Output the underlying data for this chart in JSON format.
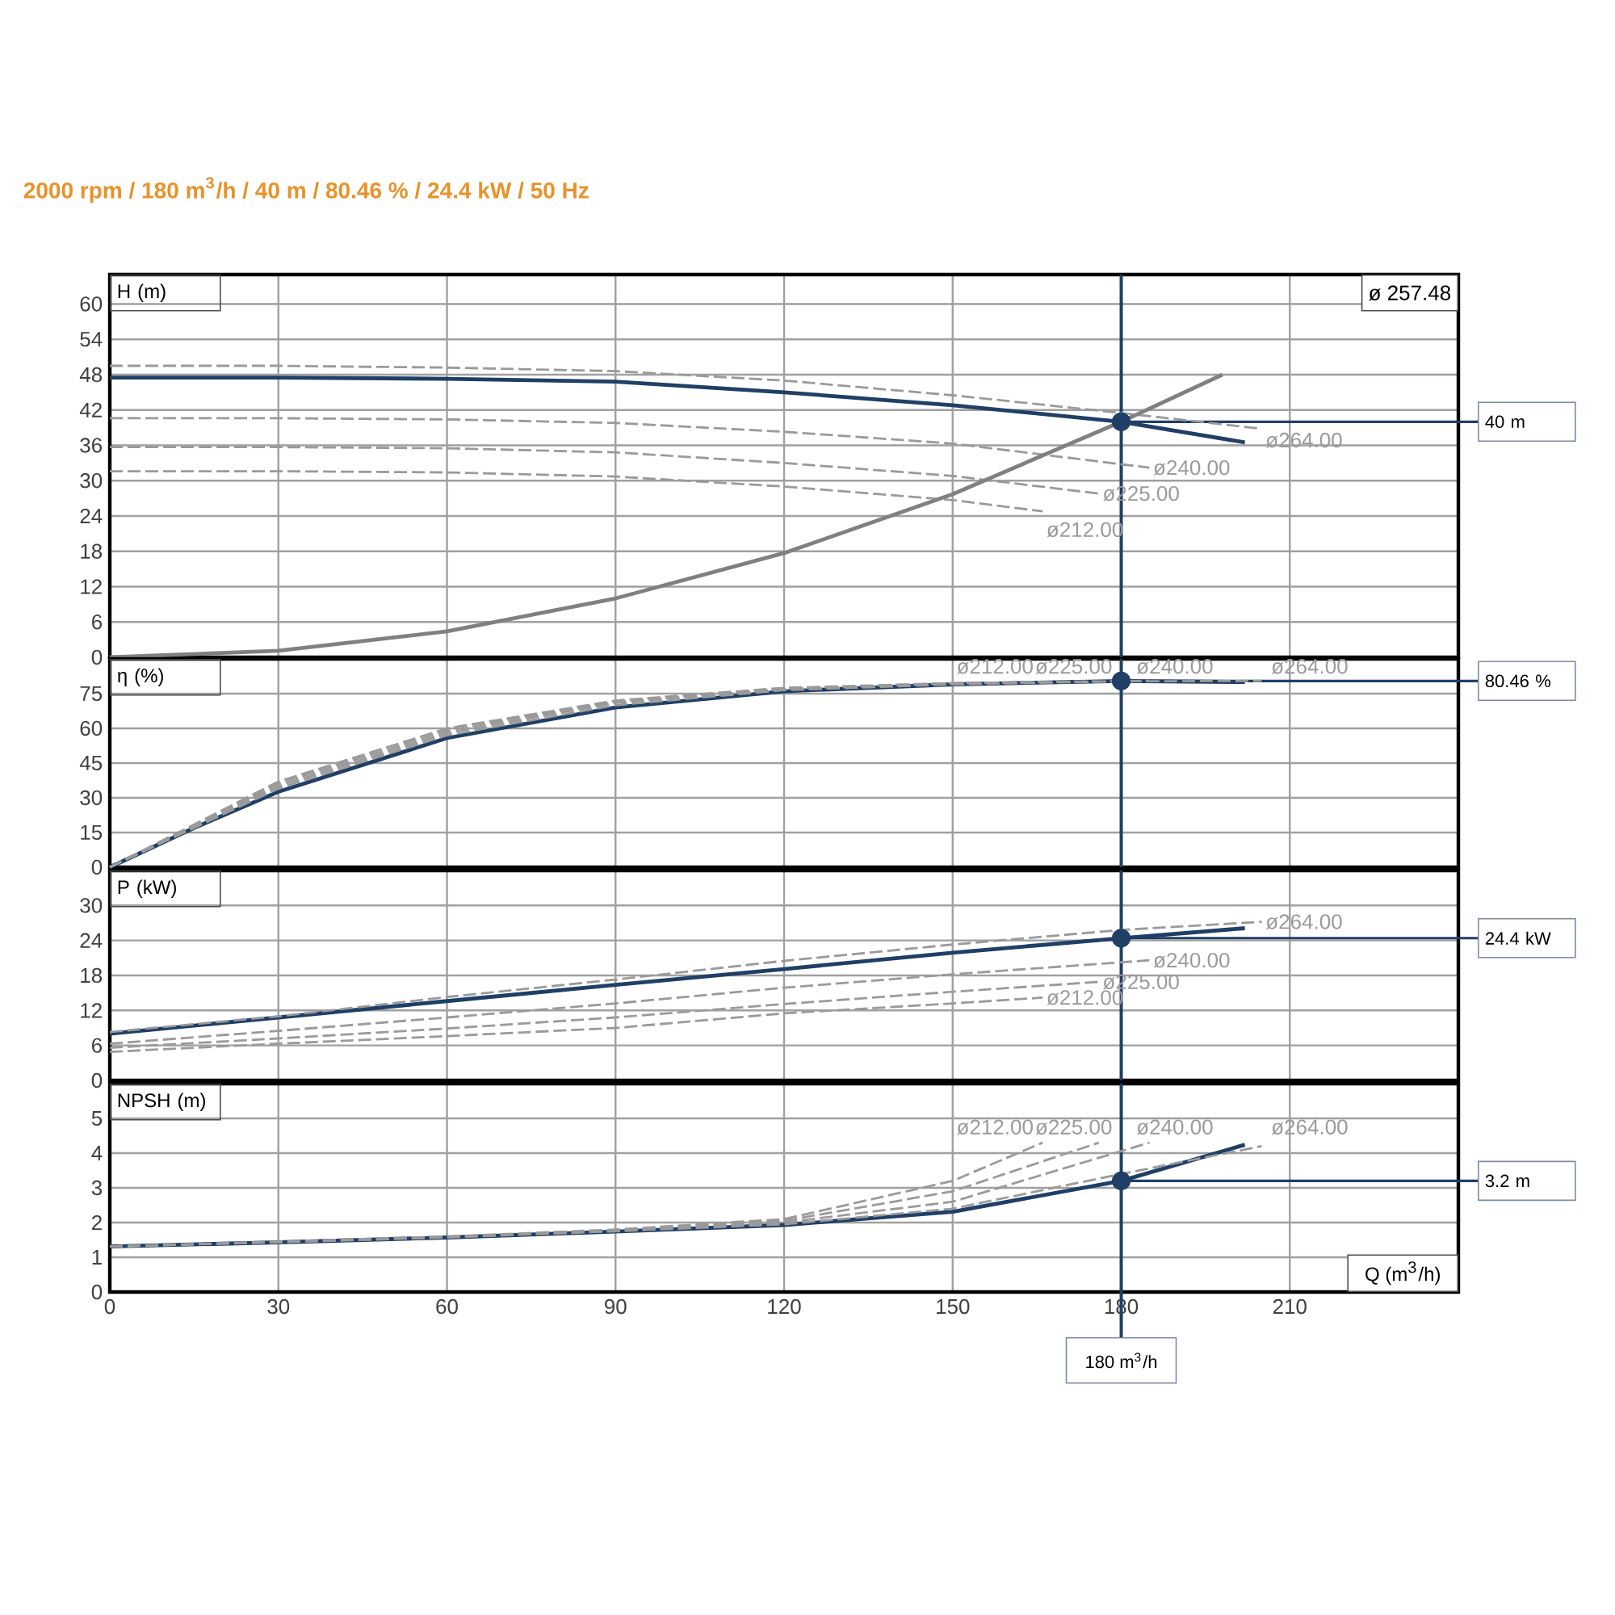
{
  "chart_data": [
    {
      "type": "line",
      "title": "2000 rpm / 180 m$^{3}$/h / 40 m / 80.46 % / 24.4 kW / 50 Hz",
      "ylabel": "H (m)",
      "annotations": [
        "ø 257.48"
      ],
      "xlim": [
        0,
        240
      ],
      "xticks": [
        0,
        30,
        60,
        90,
        120,
        150,
        180,
        210
      ],
      "ylim": [
        0,
        65
      ],
      "yticks": [
        0,
        6,
        12,
        18,
        24,
        30,
        36,
        42,
        48,
        54,
        60
      ],
      "grid": true,
      "tick_labels": "y",
      "series": [
        {
          "color": "#1f3f66",
          "x": [
            0,
            30,
            60,
            90,
            120,
            150,
            180,
            202
          ],
          "values": [
            47.5,
            47.5,
            47.3,
            46.8,
            45,
            42.8,
            40,
            36.5
          ]
        },
        {
          "name": "ø264.00",
          "color": "#9a9a9a",
          "line_style": "dashed",
          "x": [
            0,
            30,
            60,
            90,
            120,
            150,
            180,
            205
          ],
          "values": [
            49.5,
            49.5,
            49.2,
            48.6,
            47,
            44.5,
            41.5,
            38.8
          ]
        },
        {
          "name": "ø240.00",
          "color": "#9a9a9a",
          "line_style": "dashed",
          "x": [
            0,
            30,
            60,
            90,
            120,
            150,
            185
          ],
          "values": [
            40.6,
            40.6,
            40.4,
            39.8,
            38.3,
            36.3,
            32.2
          ]
        },
        {
          "name": "ø225.00",
          "color": "#9a9a9a",
          "line_style": "dashed",
          "x": [
            0,
            30,
            60,
            90,
            120,
            150,
            176
          ],
          "values": [
            35.7,
            35.7,
            35.5,
            34.8,
            33,
            30.8,
            27.8
          ]
        },
        {
          "name": "ø212.00",
          "color": "#9a9a9a",
          "line_style": "dashed",
          "x": [
            0,
            30,
            60,
            90,
            120,
            150,
            166
          ],
          "values": [
            31.6,
            31.6,
            31.4,
            30.7,
            29,
            26.7,
            24.8
          ]
        },
        {
          "color": "#808080",
          "x": [
            0,
            30,
            60,
            90,
            120,
            150,
            180,
            198
          ],
          "values": [
            0,
            1.1,
            4.4,
            10,
            17.7,
            27.7,
            40,
            48
          ]
        },
        {
          "type": "scatter",
          "marker": "circle",
          "color": "#1f3f66",
          "x": [
            180
          ],
          "values": [
            40
          ]
        }
      ],
      "ref_lines": [
        {
          "axis": "x",
          "value": 180,
          "color": "#1f3f66"
        },
        {
          "axis": "y",
          "value": 40,
          "label": "40 m",
          "color": "#1f3f66"
        }
      ]
    },
    {
      "type": "line",
      "ylabel": "η (%)",
      "xlim": [
        0,
        240
      ],
      "xticks": [
        0,
        30,
        60,
        90,
        120,
        150,
        180,
        210
      ],
      "ylim": [
        0,
        90
      ],
      "yticks": [
        0,
        15,
        30,
        45,
        60,
        75
      ],
      "grid": true,
      "tick_labels": "y",
      "series": [
        {
          "color": "#1f3f66",
          "x": [
            0,
            15,
            30,
            60,
            90,
            120,
            150,
            180,
            202
          ],
          "values": [
            0,
            17,
            32.6,
            55.8,
            69,
            76,
            79,
            80.46,
            80
          ]
        },
        {
          "name": "ø212.00",
          "color": "#9a9a9a",
          "line_style": "dashed",
          "x": [
            0,
            30,
            60,
            90,
            120,
            150,
            166
          ],
          "values": [
            0,
            37,
            60,
            72,
            77.5,
            79.5,
            80
          ]
        },
        {
          "name": "ø225.00",
          "color": "#9a9a9a",
          "line_style": "dashed",
          "x": [
            0,
            30,
            60,
            90,
            120,
            150,
            176
          ],
          "values": [
            0,
            36,
            59,
            71.5,
            77,
            79.5,
            80.3
          ]
        },
        {
          "name": "ø240.00",
          "color": "#9a9a9a",
          "line_style": "dashed",
          "x": [
            0,
            30,
            60,
            90,
            120,
            150,
            185
          ],
          "values": [
            0,
            35,
            58,
            71,
            77,
            79.5,
            80.5
          ]
        },
        {
          "name": "ø264.00",
          "color": "#9a9a9a",
          "line_style": "dashed",
          "x": [
            0,
            30,
            60,
            90,
            120,
            150,
            180,
            205
          ],
          "values": [
            0,
            34,
            57,
            70,
            76.5,
            79,
            80.3,
            80.5
          ]
        },
        {
          "type": "scatter",
          "marker": "circle",
          "color": "#1f3f66",
          "x": [
            180
          ],
          "values": [
            80.46
          ]
        }
      ],
      "ref_lines": [
        {
          "axis": "x",
          "value": 180,
          "color": "#1f3f66"
        },
        {
          "axis": "y",
          "value": 80.46,
          "label": "80.46 %",
          "color": "#1f3f66"
        }
      ]
    },
    {
      "type": "line",
      "ylabel": "P (kW)",
      "xlim": [
        0,
        240
      ],
      "xticks": [
        0,
        30,
        60,
        90,
        120,
        150,
        180,
        210
      ],
      "ylim": [
        0,
        36
      ],
      "yticks": [
        0,
        6,
        12,
        18,
        24,
        30
      ],
      "grid": true,
      "tick_labels": "y",
      "series": [
        {
          "color": "#1f3f66",
          "x": [
            0,
            30,
            60,
            90,
            120,
            150,
            180,
            202
          ],
          "values": [
            8,
            10.8,
            13.6,
            16.4,
            19.1,
            21.9,
            24.4,
            26.1
          ]
        },
        {
          "name": "ø264.00",
          "color": "#9a9a9a",
          "line_style": "dashed",
          "x": [
            0,
            30,
            60,
            90,
            120,
            150,
            180,
            205
          ],
          "values": [
            8.3,
            11,
            14.3,
            17.3,
            20.5,
            23.3,
            25.8,
            27.2
          ]
        },
        {
          "name": "ø240.00",
          "color": "#9a9a9a",
          "line_style": "dashed",
          "x": [
            0,
            30,
            60,
            90,
            120,
            150,
            185
          ],
          "values": [
            6.3,
            8.5,
            10.8,
            13.2,
            15.9,
            18.2,
            20.6
          ]
        },
        {
          "name": "ø225.00",
          "color": "#9a9a9a",
          "line_style": "dashed",
          "x": [
            0,
            30,
            60,
            90,
            120,
            150,
            176
          ],
          "values": [
            5.6,
            7.2,
            8.9,
            10.8,
            13.1,
            15.2,
            16.9
          ]
        },
        {
          "name": "ø212.00",
          "color": "#9a9a9a",
          "line_style": "dashed",
          "x": [
            0,
            30,
            60,
            90,
            120,
            150,
            166
          ],
          "values": [
            4.9,
            6.3,
            7.6,
            9,
            11.5,
            13.2,
            14.2
          ]
        },
        {
          "type": "scatter",
          "marker": "circle",
          "color": "#1f3f66",
          "x": [
            180
          ],
          "values": [
            24.4
          ]
        }
      ],
      "ref_lines": [
        {
          "axis": "x",
          "value": 180,
          "color": "#1f3f66"
        },
        {
          "axis": "y",
          "value": 24.4,
          "label": "24.4 kW",
          "color": "#1f3f66"
        }
      ]
    },
    {
      "type": "line",
      "ylabel": "NPSH (m)",
      "xlabel": "Q (m$^{3}$/h)",
      "xlim": [
        0,
        240
      ],
      "xticks": [
        0,
        30,
        60,
        90,
        120,
        150,
        180,
        210
      ],
      "ylim": [
        0,
        6
      ],
      "yticks": [
        0,
        1,
        2,
        3,
        4,
        5
      ],
      "grid": true,
      "series": [
        {
          "color": "#1f3f66",
          "x": [
            0,
            30,
            60,
            90,
            120,
            150,
            180,
            202
          ],
          "values": [
            1.31,
            1.43,
            1.57,
            1.74,
            1.93,
            2.31,
            3.2,
            4.24
          ]
        },
        {
          "name": "ø212.00",
          "color": "#9a9a9a",
          "line_style": "dashed",
          "x": [
            0,
            30,
            60,
            90,
            120,
            150,
            166
          ],
          "values": [
            1.31,
            1.45,
            1.6,
            1.8,
            2.1,
            3.2,
            4.3
          ]
        },
        {
          "name": "ø225.00",
          "color": "#9a9a9a",
          "line_style": "dashed",
          "x": [
            0,
            30,
            60,
            90,
            120,
            150,
            176
          ],
          "values": [
            1.31,
            1.44,
            1.59,
            1.78,
            2.05,
            2.9,
            4.3
          ]
        },
        {
          "name": "ø240.00",
          "color": "#9a9a9a",
          "line_style": "dashed",
          "x": [
            0,
            30,
            60,
            90,
            120,
            150,
            185
          ],
          "values": [
            1.31,
            1.44,
            1.58,
            1.77,
            2,
            2.6,
            4.3
          ]
        },
        {
          "name": "ø264.00",
          "color": "#9a9a9a",
          "line_style": "dashed",
          "x": [
            0,
            30,
            60,
            90,
            120,
            150,
            180,
            205
          ],
          "values": [
            1.31,
            1.43,
            1.57,
            1.75,
            1.95,
            2.4,
            3.4,
            4.2
          ]
        },
        {
          "type": "scatter",
          "marker": "circle",
          "color": "#1f3f66",
          "x": [
            180
          ],
          "values": [
            3.2
          ]
        }
      ],
      "ref_lines": [
        {
          "axis": "x",
          "value": 180,
          "label": "180 m$^{3}$/h",
          "color": "#1f3f66"
        },
        {
          "axis": "y",
          "value": 3.2,
          "label": "3.2 m",
          "color": "#1f3f66"
        }
      ]
    }
  ]
}
